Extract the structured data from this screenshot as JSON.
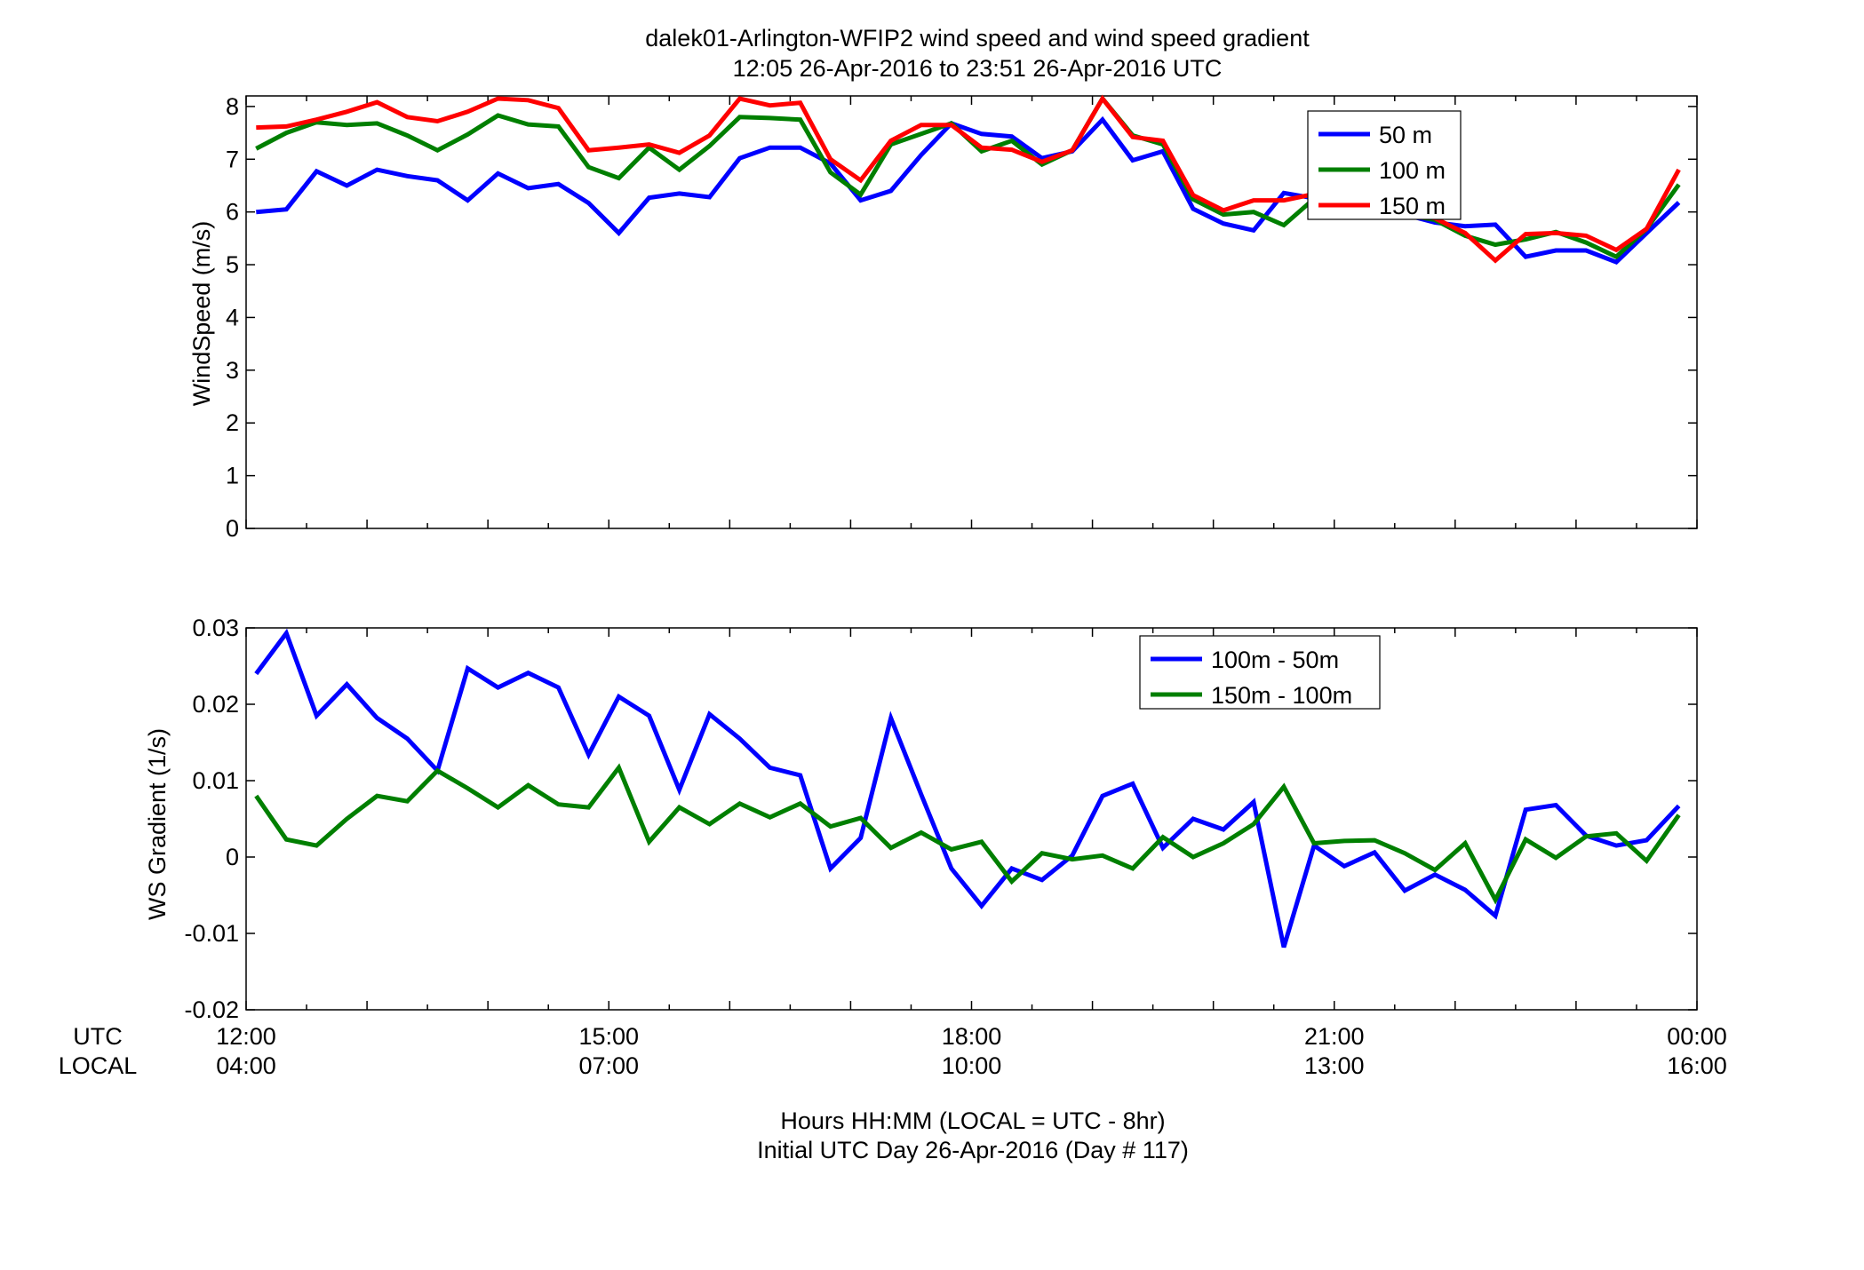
{
  "chart_data": [
    {
      "type": "line",
      "title": "dalek01-Arlington-WFIP2  wind speed and wind speed gradient",
      "subtitle": "12:05 26-Apr-2016 to 23:51 26-Apr-2016  UTC",
      "ylabel": "WindSpeed (m/s)",
      "ylim": [
        0,
        8.2
      ],
      "yticks": [
        "0",
        "1",
        "2",
        "3",
        "4",
        "5",
        "6",
        "7",
        "8"
      ],
      "xlim": [
        0,
        12
      ],
      "grid": false,
      "legend_position": "top-right",
      "series": [
        {
          "name": "50 m",
          "color": "#0000ff",
          "x": [
            0.083,
            0.333,
            0.583,
            0.833,
            1.083,
            1.333,
            1.583,
            1.833,
            2.083,
            2.333,
            2.583,
            2.833,
            3.083,
            3.333,
            3.583,
            3.833,
            4.083,
            4.333,
            4.583,
            4.833,
            5.083,
            5.333,
            5.583,
            5.833,
            6.083,
            6.333,
            6.583,
            6.833,
            7.083,
            7.333,
            7.583,
            7.833,
            8.083,
            8.333,
            8.583,
            8.833,
            9.083,
            9.333,
            9.583,
            9.833,
            10.083,
            10.333,
            10.583,
            10.833,
            11.083,
            11.333,
            11.583,
            11.85
          ],
          "values": [
            6.0,
            6.05,
            6.77,
            6.5,
            6.8,
            6.68,
            6.6,
            6.22,
            6.73,
            6.45,
            6.53,
            6.17,
            5.6,
            6.27,
            6.35,
            6.28,
            7.02,
            7.22,
            7.22,
            6.92,
            6.22,
            6.4,
            7.08,
            7.68,
            7.48,
            7.43,
            7.02,
            7.15,
            7.75,
            6.98,
            7.15,
            6.06,
            5.78,
            5.65,
            6.36,
            6.26,
            6.1,
            6.0,
            5.95,
            5.8,
            5.73,
            5.76,
            5.15,
            5.27,
            5.27,
            5.05,
            5.6,
            6.18
          ]
        },
        {
          "name": "100 m",
          "color": "#007f00",
          "x": [
            0.083,
            0.333,
            0.583,
            0.833,
            1.083,
            1.333,
            1.583,
            1.833,
            2.083,
            2.333,
            2.583,
            2.833,
            3.083,
            3.333,
            3.583,
            3.833,
            4.083,
            4.333,
            4.583,
            4.833,
            5.083,
            5.333,
            5.583,
            5.833,
            6.083,
            6.333,
            6.583,
            6.833,
            7.083,
            7.333,
            7.583,
            7.833,
            8.083,
            8.333,
            8.583,
            8.833,
            9.083,
            9.333,
            9.583,
            9.833,
            10.083,
            10.333,
            10.583,
            10.833,
            11.083,
            11.333,
            11.583,
            11.85
          ],
          "values": [
            7.2,
            7.5,
            7.7,
            7.65,
            7.68,
            7.45,
            7.17,
            7.47,
            7.83,
            7.66,
            7.62,
            6.85,
            6.64,
            7.22,
            6.8,
            7.25,
            7.8,
            7.78,
            7.75,
            6.75,
            6.33,
            7.28,
            7.48,
            7.68,
            7.15,
            7.35,
            6.9,
            7.17,
            8.15,
            7.45,
            7.28,
            6.24,
            5.95,
            6.0,
            5.75,
            6.25,
            6.12,
            6.05,
            5.95,
            5.85,
            5.55,
            5.38,
            5.48,
            5.62,
            5.42,
            5.15,
            5.68,
            6.52
          ]
        },
        {
          "name": "150 m",
          "color": "#ff0000",
          "x": [
            0.083,
            0.333,
            0.583,
            0.833,
            1.083,
            1.333,
            1.583,
            1.833,
            2.083,
            2.333,
            2.583,
            2.833,
            3.083,
            3.333,
            3.583,
            3.833,
            4.083,
            4.333,
            4.583,
            4.833,
            5.083,
            5.333,
            5.583,
            5.833,
            6.083,
            6.333,
            6.583,
            6.833,
            7.083,
            7.333,
            7.583,
            7.833,
            8.083,
            8.333,
            8.583,
            8.833,
            9.083,
            9.333,
            9.583,
            9.833,
            10.083,
            10.333,
            10.583,
            10.833,
            11.083,
            11.333,
            11.583,
            11.85
          ],
          "values": [
            7.6,
            7.62,
            7.75,
            7.9,
            8.08,
            7.8,
            7.72,
            7.9,
            8.15,
            8.12,
            7.97,
            7.17,
            7.22,
            7.28,
            7.12,
            7.45,
            8.15,
            8.02,
            8.07,
            7.0,
            6.6,
            7.35,
            7.65,
            7.65,
            7.22,
            7.18,
            6.95,
            7.17,
            8.15,
            7.42,
            7.35,
            6.32,
            6.03,
            6.22,
            6.22,
            6.34,
            6.1,
            6.05,
            6.0,
            5.88,
            5.6,
            5.08,
            5.58,
            5.6,
            5.55,
            5.28,
            5.68,
            6.8
          ]
        }
      ]
    },
    {
      "type": "line",
      "ylabel": "WS Gradient (1/s)",
      "ylim": [
        -0.02,
        0.03
      ],
      "yticks": [
        "-0.02",
        "-0.01",
        "0",
        "0.01",
        "0.02",
        "0.03"
      ],
      "xlim": [
        0,
        12
      ],
      "xlabel": "Hours HH:MM  (LOCAL = UTC - 8hr)",
      "xlabel2": "Initial UTC Day 26-Apr-2016 (Day # 117)",
      "x_row_labels": [
        "UTC",
        "LOCAL"
      ],
      "x_ticks_utc": [
        "12:00",
        "15:00",
        "18:00",
        "21:00",
        "00:00"
      ],
      "x_ticks_local": [
        "04:00",
        "07:00",
        "10:00",
        "13:00",
        "16:00"
      ],
      "grid": false,
      "legend_position": "top-right",
      "series": [
        {
          "name": "100m - 50m",
          "color": "#0000ff",
          "x": [
            0.083,
            0.333,
            0.583,
            0.833,
            1.083,
            1.333,
            1.583,
            1.833,
            2.083,
            2.333,
            2.583,
            2.833,
            3.083,
            3.333,
            3.583,
            3.833,
            4.083,
            4.333,
            4.583,
            4.833,
            5.083,
            5.333,
            5.583,
            5.833,
            6.083,
            6.333,
            6.583,
            6.833,
            7.083,
            7.333,
            7.583,
            7.833,
            8.083,
            8.333,
            8.583,
            8.833,
            9.083,
            9.333,
            9.583,
            9.833,
            10.083,
            10.333,
            10.583,
            10.833,
            11.083,
            11.333,
            11.583,
            11.85
          ],
          "values": [
            0.024,
            0.0293,
            0.0185,
            0.0226,
            0.0182,
            0.0155,
            0.0113,
            0.0247,
            0.0222,
            0.0241,
            0.0222,
            0.0134,
            0.021,
            0.0185,
            0.0088,
            0.0187,
            0.0155,
            0.0117,
            0.0107,
            -0.0015,
            0.0025,
            0.0182,
            0.0082,
            -0.0015,
            -0.0064,
            -0.0015,
            -0.003,
            0.0002,
            0.008,
            0.0096,
            0.0012,
            0.005,
            0.0036,
            0.0072,
            -0.0118,
            0.0015,
            -0.0012,
            0.0006,
            -0.0044,
            -0.0023,
            -0.0043,
            -0.0077,
            0.0062,
            0.0068,
            0.0028,
            0.0015,
            0.0022,
            0.0067
          ]
        },
        {
          "name": "150m - 100m",
          "color": "#007f00",
          "x": [
            0.083,
            0.333,
            0.583,
            0.833,
            1.083,
            1.333,
            1.583,
            1.833,
            2.083,
            2.333,
            2.583,
            2.833,
            3.083,
            3.333,
            3.583,
            3.833,
            4.083,
            4.333,
            4.583,
            4.833,
            5.083,
            5.333,
            5.583,
            5.833,
            6.083,
            6.333,
            6.583,
            6.833,
            7.083,
            7.333,
            7.583,
            7.833,
            8.083,
            8.333,
            8.583,
            8.833,
            9.083,
            9.333,
            9.583,
            9.833,
            10.083,
            10.333,
            10.583,
            10.833,
            11.083,
            11.333,
            11.583,
            11.85
          ],
          "values": [
            0.008,
            0.0023,
            0.0015,
            0.005,
            0.008,
            0.0073,
            0.0113,
            0.009,
            0.0065,
            0.0094,
            0.0069,
            0.0065,
            0.0117,
            0.002,
            0.0065,
            0.0043,
            0.007,
            0.0052,
            0.007,
            0.004,
            0.0051,
            0.0012,
            0.0032,
            0.001,
            0.002,
            -0.0032,
            0.0005,
            -0.0003,
            0.0002,
            -0.0015,
            0.0026,
            0.0,
            0.0018,
            0.0043,
            0.0092,
            0.0018,
            0.0021,
            0.0022,
            0.0005,
            -0.0017,
            0.0018,
            -0.0056,
            0.0023,
            -0.0001,
            0.0027,
            0.0031,
            -0.0005,
            0.0055
          ]
        }
      ]
    }
  ]
}
